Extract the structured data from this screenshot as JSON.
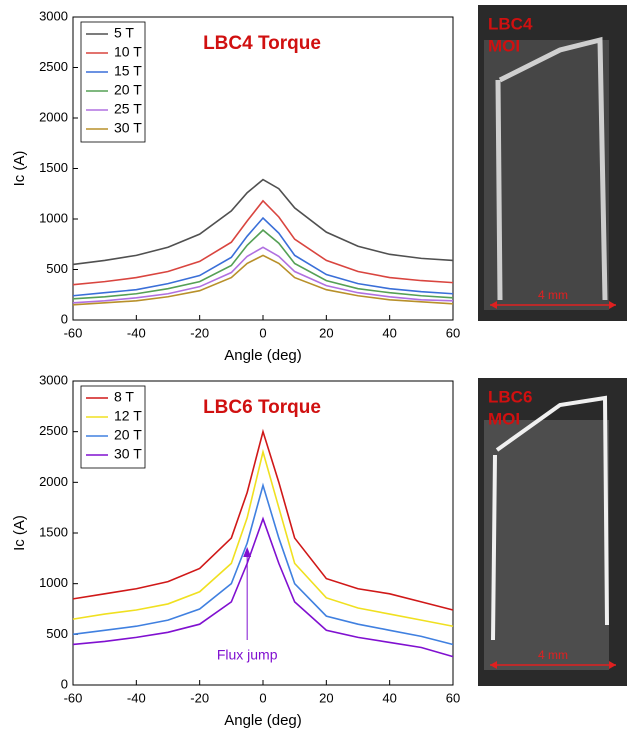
{
  "chart_data": [
    {
      "type": "line",
      "title": "LBC4 Torque",
      "x_label": "Angle (deg)",
      "y_label": "Ic (A)",
      "x": [
        -60,
        -50,
        -40,
        -30,
        -20,
        -10,
        -5,
        0,
        5,
        10,
        20,
        30,
        40,
        50,
        60
      ],
      "series": [
        {
          "name": "5 T",
          "color": "#505050",
          "values": [
            550,
            590,
            640,
            720,
            850,
            1080,
            1260,
            1390,
            1300,
            1110,
            870,
            730,
            650,
            610,
            590
          ]
        },
        {
          "name": "10 T",
          "color": "#d9453f",
          "values": [
            350,
            380,
            420,
            480,
            580,
            770,
            980,
            1180,
            1020,
            800,
            590,
            480,
            420,
            390,
            370
          ]
        },
        {
          "name": "15 T",
          "color": "#3a6fd8",
          "values": [
            240,
            270,
            300,
            360,
            440,
            620,
            830,
            1010,
            860,
            640,
            450,
            360,
            310,
            280,
            260
          ]
        },
        {
          "name": "20 T",
          "color": "#55a055",
          "values": [
            210,
            230,
            260,
            310,
            380,
            540,
            740,
            890,
            760,
            560,
            390,
            310,
            270,
            240,
            220
          ]
        },
        {
          "name": "25 T",
          "color": "#b070e0",
          "values": [
            170,
            190,
            220,
            260,
            330,
            470,
            630,
            720,
            630,
            480,
            340,
            270,
            230,
            200,
            190
          ]
        },
        {
          "name": "30 T",
          "color": "#b8902a",
          "values": [
            150,
            170,
            190,
            230,
            290,
            420,
            560,
            640,
            560,
            420,
            300,
            240,
            200,
            180,
            160
          ]
        }
      ],
      "xlim": [
        -60,
        60
      ],
      "xticks": [
        -60,
        -40,
        -20,
        0,
        20,
        40,
        60
      ],
      "ylim": [
        0,
        3000
      ],
      "yticks": [
        0,
        500,
        1000,
        1500,
        2000,
        2500,
        3000
      ],
      "legend": "upper left"
    },
    {
      "type": "line",
      "title": "LBC6 Torque",
      "x_label": "Angle (deg)",
      "y_label": "Ic (A)",
      "annotation": "Flux jump",
      "x": [
        -60,
        -50,
        -40,
        -30,
        -20,
        -10,
        -5,
        0,
        5,
        10,
        20,
        30,
        40,
        50,
        60
      ],
      "series": [
        {
          "name": "8 T",
          "color": "#d01818",
          "values": [
            850,
            900,
            950,
            1020,
            1150,
            1450,
            1900,
            2500,
            2000,
            1450,
            1050,
            950,
            900,
            820,
            740
          ]
        },
        {
          "name": "12 T",
          "color": "#f0e020",
          "values": [
            650,
            700,
            740,
            800,
            920,
            1200,
            1650,
            2300,
            1750,
            1200,
            860,
            760,
            700,
            640,
            580
          ]
        },
        {
          "name": "20 T",
          "color": "#4080e0",
          "values": [
            500,
            540,
            580,
            640,
            750,
            1000,
            1400,
            1970,
            1450,
            1000,
            680,
            600,
            540,
            480,
            400
          ]
        },
        {
          "name": "30 T",
          "color": "#8010d0",
          "values": [
            400,
            430,
            470,
            520,
            600,
            820,
            1200,
            1640,
            1200,
            820,
            540,
            470,
            420,
            370,
            280
          ]
        }
      ],
      "xlim": [
        -60,
        60
      ],
      "xticks": [
        -60,
        -40,
        -20,
        0,
        20,
        40,
        60
      ],
      "ylim": [
        0,
        3000
      ],
      "yticks": [
        0,
        500,
        1000,
        1500,
        2000,
        2500,
        3000
      ],
      "legend": "upper left"
    }
  ],
  "images": [
    {
      "label": [
        "LBC4",
        "MOI"
      ],
      "scale": "4 mm"
    },
    {
      "label": [
        "LBC6",
        "MOI"
      ],
      "scale": "4 mm"
    }
  ]
}
